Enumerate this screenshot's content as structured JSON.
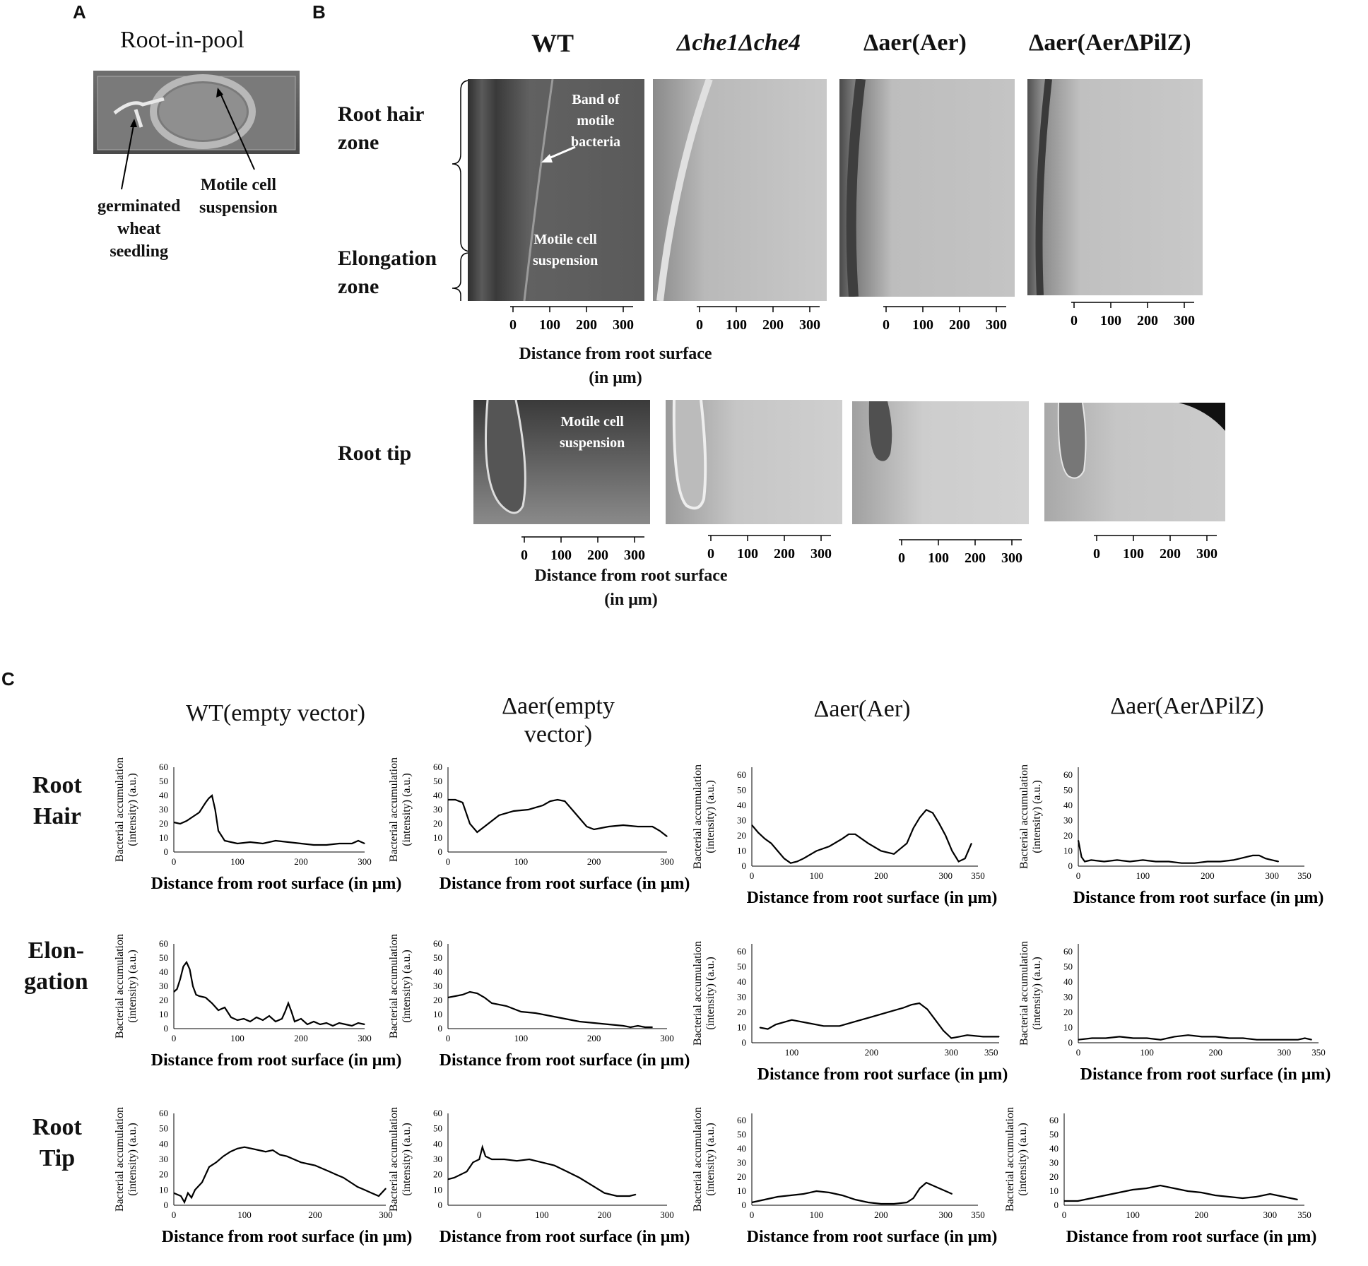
{
  "panels": {
    "a": "A",
    "b": "B",
    "c": "C"
  },
  "panelA": {
    "title": "Root-in-pool",
    "label_seedling": [
      "germinated",
      "wheat",
      "seedling"
    ],
    "label_suspension": [
      "Motile cell",
      "suspension"
    ]
  },
  "panelB": {
    "columns": [
      "WT",
      "Δche1Δche4",
      "Δaer(Aer)",
      "Δaer(AerΔPilZ)"
    ],
    "row_labels": {
      "root_hair": [
        "Root hair",
        "zone"
      ],
      "elongation": [
        "Elongation",
        "zone"
      ],
      "root_tip": "Root tip"
    },
    "annotations": {
      "band": [
        "Band of",
        "motile",
        "bacteria"
      ],
      "suspension": [
        "Motile cell",
        "suspension"
      ]
    },
    "scale_ticks": [
      "0",
      "100",
      "200",
      "300"
    ],
    "axis_title": [
      "Distance from root surface",
      "(in μm)"
    ]
  },
  "panelC": {
    "headers": [
      "WT(empty vector)",
      "Δaer(empty vector)",
      "Δaer(Aer)",
      "Δaer(AerΔPilZ)"
    ],
    "row_labels": [
      [
        "Root",
        "Hair"
      ],
      [
        "Elon-",
        "gation"
      ],
      [
        "Root",
        "Tip"
      ]
    ],
    "ylabel": [
      "Bacterial accumulation",
      "(intensity) (a.u.)"
    ],
    "xlabel": "Distance from root surface (in μm)",
    "yticks": [
      "0",
      "10",
      "20",
      "30",
      "40",
      "50",
      "60"
    ],
    "xticks_300": [
      "0",
      "100",
      "200",
      "300"
    ],
    "xticks_350": [
      "0",
      "100",
      "200",
      "300",
      "350"
    ]
  },
  "chart_data": [
    {
      "type": "line",
      "row": "Root Hair",
      "column": "WT(empty vector)",
      "xlim": [
        0,
        300
      ],
      "ylim": [
        0,
        60
      ],
      "x": [
        0,
        10,
        20,
        30,
        40,
        50,
        55,
        60,
        65,
        70,
        80,
        90,
        100,
        120,
        140,
        160,
        180,
        200,
        220,
        240,
        260,
        280,
        290,
        300
      ],
      "values": [
        21,
        20,
        22,
        25,
        28,
        35,
        38,
        40,
        30,
        15,
        8,
        7,
        6,
        7,
        6,
        8,
        7,
        6,
        5,
        5,
        6,
        6,
        8,
        6
      ]
    },
    {
      "type": "line",
      "row": "Root Hair",
      "column": "Δaer(empty vector)",
      "xlim": [
        0,
        300
      ],
      "ylim": [
        0,
        60
      ],
      "x": [
        0,
        10,
        20,
        30,
        40,
        50,
        70,
        90,
        110,
        130,
        140,
        150,
        160,
        170,
        180,
        190,
        200,
        210,
        220,
        240,
        260,
        280,
        290,
        300
      ],
      "values": [
        37,
        37,
        35,
        20,
        14,
        18,
        26,
        29,
        30,
        33,
        36,
        37,
        36,
        30,
        24,
        18,
        16,
        17,
        18,
        19,
        18,
        18,
        15,
        11
      ]
    },
    {
      "type": "line",
      "row": "Root Hair",
      "column": "Δaer(Aer)",
      "xlim": [
        0,
        350
      ],
      "ylim": [
        0,
        65
      ],
      "x": [
        0,
        10,
        20,
        30,
        40,
        50,
        60,
        70,
        80,
        100,
        120,
        140,
        150,
        160,
        180,
        200,
        220,
        240,
        250,
        260,
        270,
        280,
        290,
        300,
        310,
        320,
        330,
        340
      ],
      "values": [
        27,
        22,
        18,
        15,
        10,
        5,
        2,
        3,
        5,
        10,
        13,
        18,
        21,
        21,
        15,
        10,
        8,
        15,
        25,
        32,
        37,
        35,
        28,
        20,
        10,
        3,
        5,
        15
      ]
    },
    {
      "type": "line",
      "row": "Root Hair",
      "column": "Δaer(AerΔPilZ)",
      "xlim": [
        0,
        350
      ],
      "ylim": [
        0,
        65
      ],
      "x": [
        0,
        5,
        10,
        20,
        40,
        60,
        80,
        100,
        120,
        140,
        160,
        180,
        200,
        220,
        240,
        260,
        270,
        280,
        290,
        300,
        310
      ],
      "values": [
        17,
        6,
        3,
        4,
        3,
        4,
        3,
        4,
        3,
        3,
        2,
        2,
        3,
        3,
        4,
        6,
        7,
        7,
        5,
        4,
        3
      ]
    },
    {
      "type": "line",
      "row": "Elongation",
      "column": "WT(empty vector)",
      "xlim": [
        0,
        300
      ],
      "ylim": [
        0,
        60
      ],
      "x": [
        0,
        5,
        10,
        15,
        20,
        25,
        30,
        35,
        40,
        50,
        60,
        70,
        80,
        90,
        100,
        110,
        120,
        130,
        140,
        150,
        160,
        170,
        175,
        180,
        185,
        190,
        200,
        210,
        220,
        230,
        240,
        250,
        260,
        270,
        280,
        290,
        300
      ],
      "values": [
        26,
        28,
        35,
        44,
        47,
        42,
        30,
        24,
        23,
        22,
        18,
        13,
        15,
        8,
        6,
        7,
        5,
        8,
        6,
        9,
        5,
        7,
        12,
        18,
        12,
        5,
        7,
        3,
        5,
        3,
        4,
        2,
        4,
        3,
        2,
        4,
        3
      ]
    },
    {
      "type": "line",
      "row": "Elongation",
      "column": "Δaer(empty vector)",
      "xlim": [
        0,
        300
      ],
      "ylim": [
        0,
        60
      ],
      "x": [
        0,
        10,
        20,
        30,
        40,
        50,
        60,
        80,
        100,
        120,
        140,
        160,
        180,
        200,
        220,
        240,
        250,
        260,
        270,
        280
      ],
      "values": [
        22,
        23,
        24,
        26,
        25,
        22,
        18,
        16,
        12,
        11,
        9,
        7,
        5,
        4,
        3,
        2,
        1,
        2,
        1,
        1
      ]
    },
    {
      "type": "line",
      "row": "Elongation",
      "column": "Δaer(Aer)",
      "xlim": [
        50,
        360
      ],
      "ylim": [
        0,
        65
      ],
      "x": [
        60,
        70,
        80,
        100,
        120,
        140,
        160,
        180,
        200,
        220,
        240,
        250,
        260,
        270,
        280,
        290,
        300,
        310,
        320,
        340,
        360
      ],
      "values": [
        10,
        9,
        12,
        15,
        13,
        11,
        11,
        14,
        17,
        20,
        23,
        25,
        26,
        22,
        15,
        8,
        3,
        4,
        5,
        4,
        4
      ]
    },
    {
      "type": "line",
      "row": "Elongation",
      "column": "Δaer(AerΔPilZ)",
      "xlim": [
        0,
        350
      ],
      "ylim": [
        0,
        65
      ],
      "x": [
        0,
        20,
        40,
        60,
        80,
        100,
        120,
        140,
        160,
        180,
        200,
        220,
        240,
        260,
        280,
        300,
        320,
        330,
        340
      ],
      "values": [
        2,
        3,
        3,
        4,
        3,
        3,
        2,
        4,
        5,
        4,
        4,
        3,
        3,
        2,
        2,
        2,
        2,
        3,
        2
      ]
    },
    {
      "type": "line",
      "row": "Root Tip",
      "column": "WT(empty vector)",
      "xlim": [
        0,
        300
      ],
      "ylim": [
        0,
        60
      ],
      "x": [
        0,
        10,
        15,
        20,
        25,
        30,
        40,
        50,
        60,
        70,
        80,
        90,
        100,
        110,
        120,
        130,
        140,
        150,
        160,
        170,
        180,
        190,
        200,
        210,
        220,
        230,
        240,
        250,
        260,
        270,
        280,
        290,
        300
      ],
      "values": [
        8,
        6,
        2,
        8,
        5,
        10,
        15,
        25,
        28,
        32,
        35,
        37,
        38,
        37,
        36,
        35,
        36,
        33,
        32,
        30,
        28,
        27,
        26,
        24,
        22,
        20,
        18,
        15,
        12,
        10,
        8,
        6,
        11
      ]
    },
    {
      "type": "line",
      "row": "Root Tip",
      "column": "Δaer(empty vector)",
      "xlim": [
        -50,
        300
      ],
      "ylim": [
        0,
        60
      ],
      "x": [
        -50,
        -40,
        -20,
        -10,
        0,
        5,
        10,
        20,
        40,
        60,
        80,
        100,
        120,
        140,
        160,
        180,
        200,
        220,
        240,
        250
      ],
      "values": [
        17,
        18,
        22,
        28,
        30,
        38,
        32,
        30,
        30,
        29,
        30,
        28,
        26,
        22,
        18,
        13,
        8,
        6,
        6,
        7
      ]
    },
    {
      "type": "line",
      "row": "Root Tip",
      "column": "Δaer(Aer)",
      "xlim": [
        0,
        350
      ],
      "ylim": [
        0,
        65
      ],
      "x": [
        0,
        20,
        40,
        60,
        80,
        100,
        120,
        140,
        160,
        180,
        200,
        220,
        240,
        250,
        260,
        270,
        280,
        290,
        300,
        310
      ],
      "values": [
        2,
        4,
        6,
        7,
        8,
        10,
        9,
        7,
        4,
        2,
        1,
        1,
        2,
        5,
        12,
        16,
        14,
        12,
        10,
        8
      ]
    },
    {
      "type": "line",
      "row": "Root Tip",
      "column": "Δaer(AerΔPilZ)",
      "xlim": [
        0,
        350
      ],
      "ylim": [
        0,
        65
      ],
      "x": [
        0,
        20,
        40,
        60,
        80,
        100,
        120,
        140,
        160,
        180,
        200,
        220,
        240,
        260,
        280,
        300,
        320,
        340
      ],
      "values": [
        3,
        3,
        5,
        7,
        9,
        11,
        12,
        14,
        12,
        10,
        9,
        7,
        6,
        5,
        6,
        8,
        6,
        4
      ]
    }
  ]
}
